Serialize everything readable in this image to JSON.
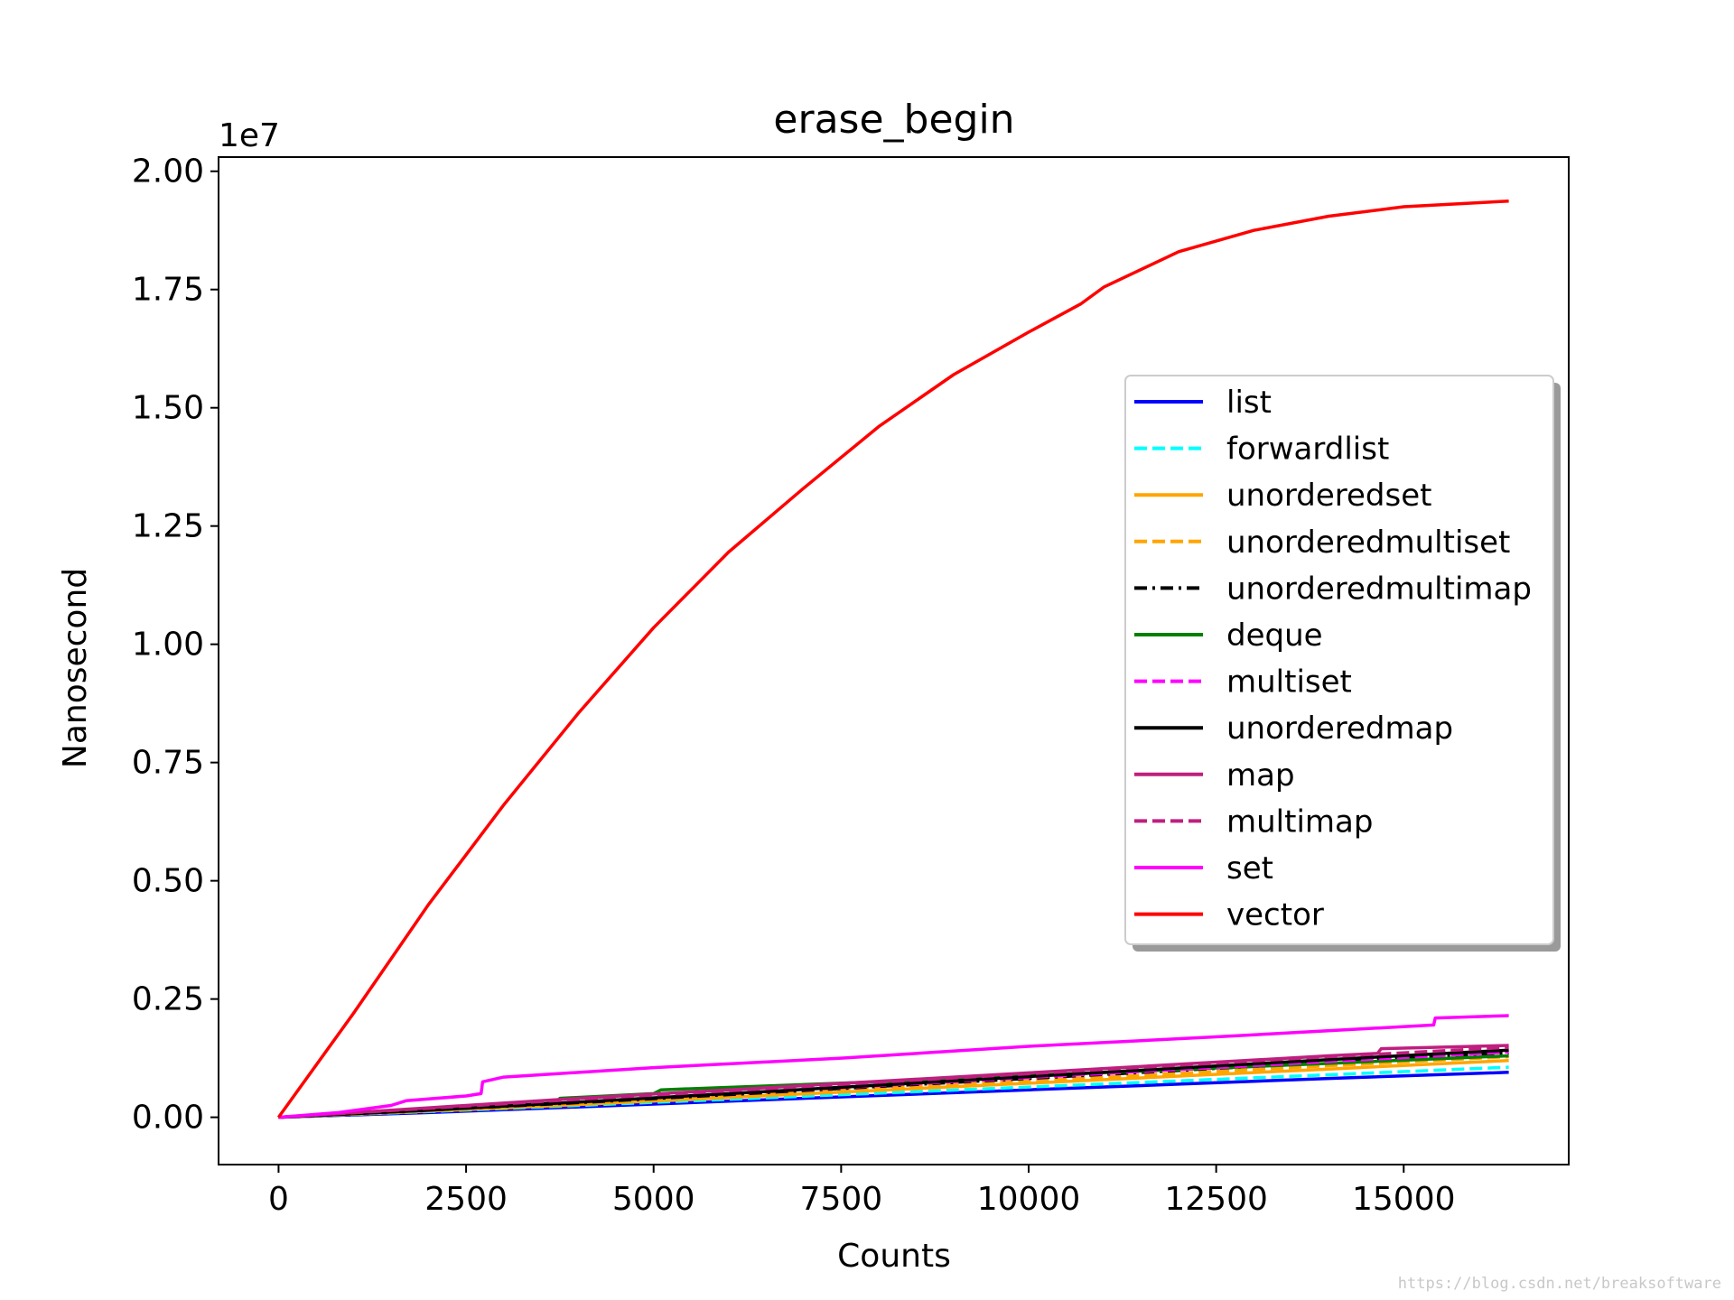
{
  "chart_data": {
    "type": "line",
    "title": "erase_begin",
    "xlabel": "Counts",
    "ylabel": "Nanosecond",
    "y_multiplier_label": "1e7",
    "xlim": [
      -800,
      17200
    ],
    "ylim": [
      -0.1,
      2.03
    ],
    "xticks": [
      0,
      2500,
      5000,
      7500,
      10000,
      12500,
      15000
    ],
    "xtick_labels": [
      "0",
      "2500",
      "5000",
      "7500",
      "10000",
      "12500",
      "15000"
    ],
    "yticks": [
      0.0,
      0.25,
      0.5,
      0.75,
      1.0,
      1.25,
      1.5,
      1.75,
      2.0
    ],
    "ytick_labels": [
      "0.00",
      "0.25",
      "0.50",
      "0.75",
      "1.00",
      "1.25",
      "1.50",
      "1.75",
      "2.00"
    ],
    "grid": false,
    "legend_position": "center-right",
    "series": [
      {
        "name": "list",
        "color": "#0000ff",
        "dash": "solid",
        "points": [
          [
            0,
            0
          ],
          [
            2000,
            0.01
          ],
          [
            4000,
            0.022
          ],
          [
            6000,
            0.034
          ],
          [
            8000,
            0.046
          ],
          [
            10000,
            0.058
          ],
          [
            12000,
            0.07
          ],
          [
            14000,
            0.082
          ],
          [
            16400,
            0.095
          ]
        ]
      },
      {
        "name": "forwardlist",
        "color": "#00ffff",
        "dash": "dashed",
        "points": [
          [
            0,
            0
          ],
          [
            2000,
            0.012
          ],
          [
            4000,
            0.025
          ],
          [
            6000,
            0.038
          ],
          [
            8000,
            0.051
          ],
          [
            10000,
            0.064
          ],
          [
            12000,
            0.077
          ],
          [
            14000,
            0.09
          ],
          [
            16400,
            0.106
          ]
        ]
      },
      {
        "name": "unorderedset",
        "color": "#ffa500",
        "dash": "solid",
        "points": [
          [
            0,
            0
          ],
          [
            2000,
            0.013
          ],
          [
            4000,
            0.027
          ],
          [
            6000,
            0.042
          ],
          [
            8000,
            0.057
          ],
          [
            10000,
            0.072
          ],
          [
            12000,
            0.087
          ],
          [
            14000,
            0.102
          ],
          [
            16400,
            0.12
          ]
        ]
      },
      {
        "name": "unorderedmultiset",
        "color": "#ffa500",
        "dash": "dashed",
        "points": [
          [
            0,
            0
          ],
          [
            2000,
            0.014
          ],
          [
            4000,
            0.029
          ],
          [
            6000,
            0.045
          ],
          [
            8000,
            0.061
          ],
          [
            10000,
            0.077
          ],
          [
            12000,
            0.093
          ],
          [
            14000,
            0.109
          ],
          [
            16400,
            0.128
          ]
        ]
      },
      {
        "name": "unorderedmultimap",
        "color": "#000000",
        "dash": "dashdot",
        "points": [
          [
            0,
            0
          ],
          [
            2000,
            0.015
          ],
          [
            4000,
            0.031
          ],
          [
            6000,
            0.048
          ],
          [
            8000,
            0.065
          ],
          [
            10000,
            0.082
          ],
          [
            12000,
            0.099
          ],
          [
            14000,
            0.116
          ],
          [
            16400,
            0.136
          ]
        ]
      },
      {
        "name": "deque",
        "color": "#008000",
        "dash": "solid",
        "points": [
          [
            0,
            0
          ],
          [
            2000,
            0.015
          ],
          [
            3700,
            0.03
          ],
          [
            3750,
            0.04
          ],
          [
            5000,
            0.05
          ],
          [
            5100,
            0.058
          ],
          [
            8000,
            0.075
          ],
          [
            10000,
            0.088
          ],
          [
            12000,
            0.101
          ],
          [
            14000,
            0.114
          ],
          [
            16400,
            0.13
          ]
        ]
      },
      {
        "name": "multiset",
        "color": "#ff00ff",
        "dash": "dashed",
        "points": [
          [
            0,
            0
          ],
          [
            2000,
            0.016
          ],
          [
            4000,
            0.033
          ],
          [
            6000,
            0.05
          ],
          [
            8000,
            0.067
          ],
          [
            10000,
            0.084
          ],
          [
            12000,
            0.101
          ],
          [
            14000,
            0.118
          ],
          [
            16400,
            0.138
          ]
        ]
      },
      {
        "name": "unorderedmap",
        "color": "#000000",
        "dash": "solid",
        "points": [
          [
            0,
            0
          ],
          [
            2000,
            0.015
          ],
          [
            4000,
            0.032
          ],
          [
            6000,
            0.05
          ],
          [
            8000,
            0.068
          ],
          [
            10000,
            0.086
          ],
          [
            12000,
            0.104
          ],
          [
            14000,
            0.122
          ],
          [
            16400,
            0.142
          ]
        ]
      },
      {
        "name": "map",
        "color": "#bf1f7f",
        "dash": "solid",
        "points": [
          [
            0,
            0
          ],
          [
            2000,
            0.02
          ],
          [
            4000,
            0.04
          ],
          [
            6000,
            0.058
          ],
          [
            8000,
            0.076
          ],
          [
            10000,
            0.094
          ],
          [
            12000,
            0.112
          ],
          [
            14000,
            0.13
          ],
          [
            14650,
            0.135
          ],
          [
            14700,
            0.145
          ],
          [
            16400,
            0.152
          ]
        ]
      },
      {
        "name": "multimap",
        "color": "#bf1f7f",
        "dash": "dashed",
        "points": [
          [
            0,
            0
          ],
          [
            2000,
            0.019
          ],
          [
            4000,
            0.038
          ],
          [
            6000,
            0.056
          ],
          [
            8000,
            0.074
          ],
          [
            10000,
            0.092
          ],
          [
            12000,
            0.11
          ],
          [
            14000,
            0.128
          ],
          [
            16400,
            0.148
          ]
        ]
      },
      {
        "name": "set",
        "color": "#ff00ff",
        "dash": "solid",
        "points": [
          [
            0,
            0
          ],
          [
            800,
            0.01
          ],
          [
            1500,
            0.025
          ],
          [
            1700,
            0.035
          ],
          [
            2500,
            0.045
          ],
          [
            2700,
            0.05
          ],
          [
            2720,
            0.075
          ],
          [
            3000,
            0.085
          ],
          [
            5000,
            0.105
          ],
          [
            7500,
            0.125
          ],
          [
            10000,
            0.15
          ],
          [
            12500,
            0.17
          ],
          [
            15400,
            0.195
          ],
          [
            15420,
            0.21
          ],
          [
            16400,
            0.215
          ]
        ]
      },
      {
        "name": "vector",
        "color": "#ff0000",
        "dash": "solid",
        "points": [
          [
            0,
            0
          ],
          [
            1000,
            0.22
          ],
          [
            2000,
            0.45
          ],
          [
            3000,
            0.66
          ],
          [
            4000,
            0.855
          ],
          [
            5000,
            1.035
          ],
          [
            6000,
            1.195
          ],
          [
            7000,
            1.33
          ],
          [
            8000,
            1.46
          ],
          [
            9000,
            1.57
          ],
          [
            10000,
            1.66
          ],
          [
            10700,
            1.72
          ],
          [
            11000,
            1.755
          ],
          [
            12000,
            1.83
          ],
          [
            13000,
            1.875
          ],
          [
            14000,
            1.905
          ],
          [
            15000,
            1.925
          ],
          [
            16400,
            1.937
          ]
        ]
      }
    ]
  },
  "watermark": "https://blog.csdn.net/breaksoftware"
}
